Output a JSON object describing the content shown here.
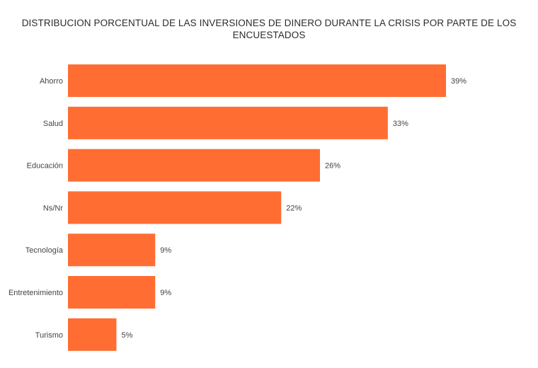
{
  "chart_data": {
    "type": "bar",
    "orientation": "horizontal",
    "title_lines": [
      "DISTRIBUCION PORCENTUAL DE LAS INVERSIONES DE DINERO DURANTE LA CRISIS POR PARTE DE LOS",
      "ENCUESTADOS"
    ],
    "categories": [
      "Ahorro",
      "Salud",
      "Educación",
      "Ns/Nr",
      "Tecnología",
      "Entretenimiento",
      "Turismo"
    ],
    "values": [
      39,
      33,
      26,
      22,
      9,
      9,
      5
    ],
    "value_labels": [
      "39%",
      "33%",
      "26%",
      "22%",
      "9%",
      "9%",
      "5%"
    ],
    "bar_color": "#ff6d33",
    "xlim": [
      0,
      39
    ],
    "grid": false,
    "legend": "none"
  }
}
